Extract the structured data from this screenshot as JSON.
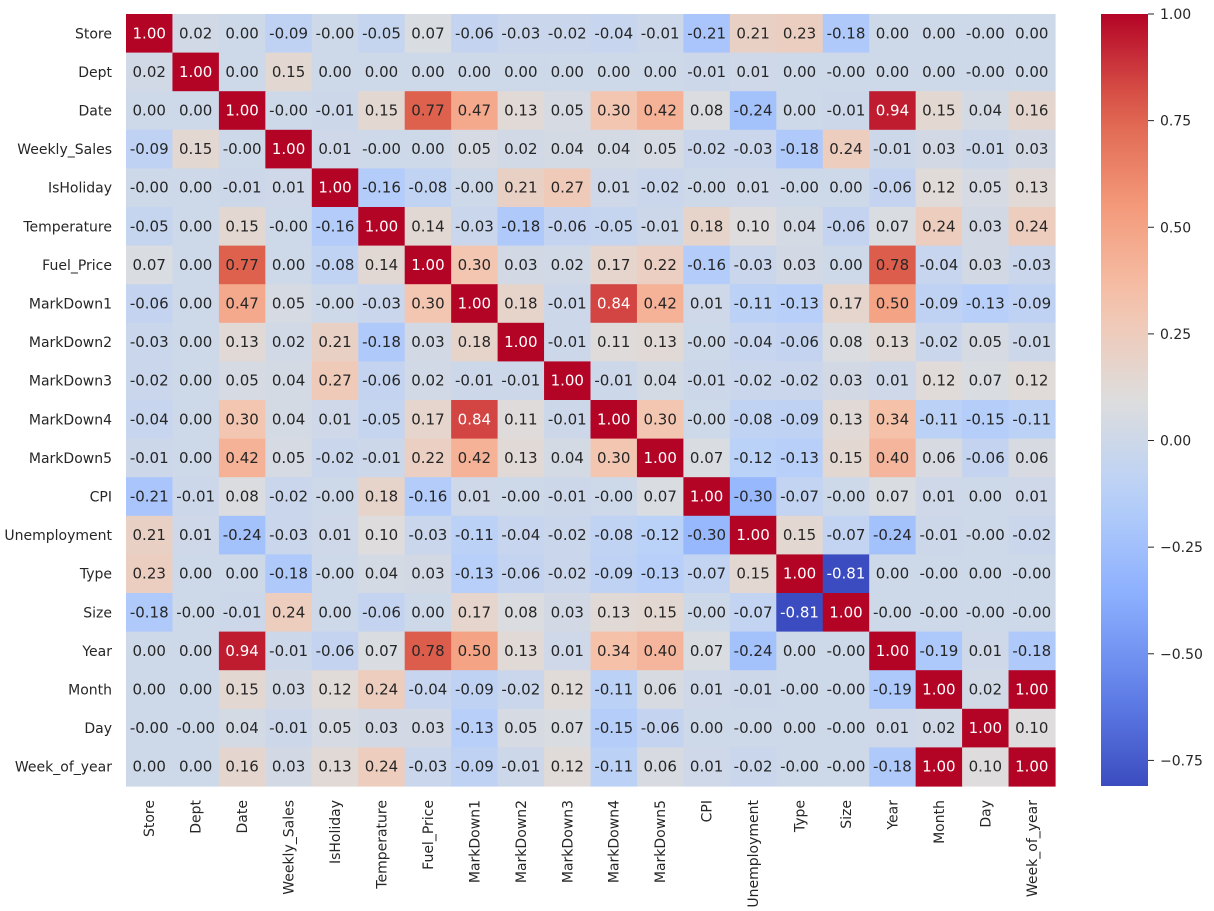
{
  "chart_data": {
    "type": "heatmap",
    "title": "",
    "colormap": "coolwarm",
    "vmin": -0.81,
    "vmax": 1.0,
    "variables": [
      "Store",
      "Dept",
      "Date",
      "Weekly_Sales",
      "IsHoliday",
      "Temperature",
      "Fuel_Price",
      "MarkDown1",
      "MarkDown2",
      "MarkDown3",
      "MarkDown4",
      "MarkDown5",
      "CPI",
      "Unemployment",
      "Type",
      "Size",
      "Year",
      "Month",
      "Day",
      "Week_of_year"
    ],
    "matrix": [
      [
        "1.00",
        "0.02",
        "0.00",
        "-0.09",
        "-0.00",
        "-0.05",
        "0.07",
        "-0.06",
        "-0.03",
        "-0.02",
        "-0.04",
        "-0.01",
        "-0.21",
        "0.21",
        "0.23",
        "-0.18",
        "0.00",
        "0.00",
        "-0.00",
        "0.00"
      ],
      [
        "0.02",
        "1.00",
        "0.00",
        "0.15",
        "0.00",
        "0.00",
        "0.00",
        "0.00",
        "0.00",
        "0.00",
        "0.00",
        "0.00",
        "-0.01",
        "0.01",
        "0.00",
        "-0.00",
        "0.00",
        "0.00",
        "-0.00",
        "0.00"
      ],
      [
        "0.00",
        "0.00",
        "1.00",
        "-0.00",
        "-0.01",
        "0.15",
        "0.77",
        "0.47",
        "0.13",
        "0.05",
        "0.30",
        "0.42",
        "0.08",
        "-0.24",
        "0.00",
        "-0.01",
        "0.94",
        "0.15",
        "0.04",
        "0.16"
      ],
      [
        "-0.09",
        "0.15",
        "-0.00",
        "1.00",
        "0.01",
        "-0.00",
        "0.00",
        "0.05",
        "0.02",
        "0.04",
        "0.04",
        "0.05",
        "-0.02",
        "-0.03",
        "-0.18",
        "0.24",
        "-0.01",
        "0.03",
        "-0.01",
        "0.03"
      ],
      [
        "-0.00",
        "0.00",
        "-0.01",
        "0.01",
        "1.00",
        "-0.16",
        "-0.08",
        "-0.00",
        "0.21",
        "0.27",
        "0.01",
        "-0.02",
        "-0.00",
        "0.01",
        "-0.00",
        "0.00",
        "-0.06",
        "0.12",
        "0.05",
        "0.13"
      ],
      [
        "-0.05",
        "0.00",
        "0.15",
        "-0.00",
        "-0.16",
        "1.00",
        "0.14",
        "-0.03",
        "-0.18",
        "-0.06",
        "-0.05",
        "-0.01",
        "0.18",
        "0.10",
        "0.04",
        "-0.06",
        "0.07",
        "0.24",
        "0.03",
        "0.24"
      ],
      [
        "0.07",
        "0.00",
        "0.77",
        "0.00",
        "-0.08",
        "0.14",
        "1.00",
        "0.30",
        "0.03",
        "0.02",
        "0.17",
        "0.22",
        "-0.16",
        "-0.03",
        "0.03",
        "0.00",
        "0.78",
        "-0.04",
        "0.03",
        "-0.03"
      ],
      [
        "-0.06",
        "0.00",
        "0.47",
        "0.05",
        "-0.00",
        "-0.03",
        "0.30",
        "1.00",
        "0.18",
        "-0.01",
        "0.84",
        "0.42",
        "0.01",
        "-0.11",
        "-0.13",
        "0.17",
        "0.50",
        "-0.09",
        "-0.13",
        "-0.09"
      ],
      [
        "-0.03",
        "0.00",
        "0.13",
        "0.02",
        "0.21",
        "-0.18",
        "0.03",
        "0.18",
        "1.00",
        "-0.01",
        "0.11",
        "0.13",
        "-0.00",
        "-0.04",
        "-0.06",
        "0.08",
        "0.13",
        "-0.02",
        "0.05",
        "-0.01"
      ],
      [
        "-0.02",
        "0.00",
        "0.05",
        "0.04",
        "0.27",
        "-0.06",
        "0.02",
        "-0.01",
        "-0.01",
        "1.00",
        "-0.01",
        "0.04",
        "-0.01",
        "-0.02",
        "-0.02",
        "0.03",
        "0.01",
        "0.12",
        "0.07",
        "0.12"
      ],
      [
        "-0.04",
        "0.00",
        "0.30",
        "0.04",
        "0.01",
        "-0.05",
        "0.17",
        "0.84",
        "0.11",
        "-0.01",
        "1.00",
        "0.30",
        "-0.00",
        "-0.08",
        "-0.09",
        "0.13",
        "0.34",
        "-0.11",
        "-0.15",
        "-0.11"
      ],
      [
        "-0.01",
        "0.00",
        "0.42",
        "0.05",
        "-0.02",
        "-0.01",
        "0.22",
        "0.42",
        "0.13",
        "0.04",
        "0.30",
        "1.00",
        "0.07",
        "-0.12",
        "-0.13",
        "0.15",
        "0.40",
        "0.06",
        "-0.06",
        "0.06"
      ],
      [
        "-0.21",
        "-0.01",
        "0.08",
        "-0.02",
        "-0.00",
        "0.18",
        "-0.16",
        "0.01",
        "-0.00",
        "-0.01",
        "-0.00",
        "0.07",
        "1.00",
        "-0.30",
        "-0.07",
        "-0.00",
        "0.07",
        "0.01",
        "0.00",
        "0.01"
      ],
      [
        "0.21",
        "0.01",
        "-0.24",
        "-0.03",
        "0.01",
        "0.10",
        "-0.03",
        "-0.11",
        "-0.04",
        "-0.02",
        "-0.08",
        "-0.12",
        "-0.30",
        "1.00",
        "0.15",
        "-0.07",
        "-0.24",
        "-0.01",
        "-0.00",
        "-0.02"
      ],
      [
        "0.23",
        "0.00",
        "0.00",
        "-0.18",
        "-0.00",
        "0.04",
        "0.03",
        "-0.13",
        "-0.06",
        "-0.02",
        "-0.09",
        "-0.13",
        "-0.07",
        "0.15",
        "1.00",
        "-0.81",
        "0.00",
        "-0.00",
        "0.00",
        "-0.00"
      ],
      [
        "-0.18",
        "-0.00",
        "-0.01",
        "0.24",
        "0.00",
        "-0.06",
        "0.00",
        "0.17",
        "0.08",
        "0.03",
        "0.13",
        "0.15",
        "-0.00",
        "-0.07",
        "-0.81",
        "1.00",
        "-0.00",
        "-0.00",
        "-0.00",
        "-0.00"
      ],
      [
        "0.00",
        "0.00",
        "0.94",
        "-0.01",
        "-0.06",
        "0.07",
        "0.78",
        "0.50",
        "0.13",
        "0.01",
        "0.34",
        "0.40",
        "0.07",
        "-0.24",
        "0.00",
        "-0.00",
        "1.00",
        "-0.19",
        "0.01",
        "-0.18"
      ],
      [
        "0.00",
        "0.00",
        "0.15",
        "0.03",
        "0.12",
        "0.24",
        "-0.04",
        "-0.09",
        "-0.02",
        "0.12",
        "-0.11",
        "0.06",
        "0.01",
        "-0.01",
        "-0.00",
        "-0.00",
        "-0.19",
        "1.00",
        "0.02",
        "1.00"
      ],
      [
        "-0.00",
        "-0.00",
        "0.04",
        "-0.01",
        "0.05",
        "0.03",
        "0.03",
        "-0.13",
        "0.05",
        "0.07",
        "-0.15",
        "-0.06",
        "0.00",
        "-0.00",
        "0.00",
        "-0.00",
        "0.01",
        "0.02",
        "1.00",
        "0.10"
      ],
      [
        "0.00",
        "0.00",
        "0.16",
        "0.03",
        "0.13",
        "0.24",
        "-0.03",
        "-0.09",
        "-0.01",
        "0.12",
        "-0.11",
        "0.06",
        "0.01",
        "-0.02",
        "-0.00",
        "-0.00",
        "-0.18",
        "1.00",
        "0.10",
        "1.00"
      ]
    ],
    "colorbar": {
      "ticks": [
        1.0,
        0.75,
        0.5,
        0.25,
        0.0,
        -0.25,
        -0.5,
        -0.75
      ],
      "tick_labels": [
        "1.00",
        "0.75",
        "0.50",
        "0.25",
        "0.00",
        "−0.25",
        "−0.50",
        "−0.75"
      ]
    }
  }
}
